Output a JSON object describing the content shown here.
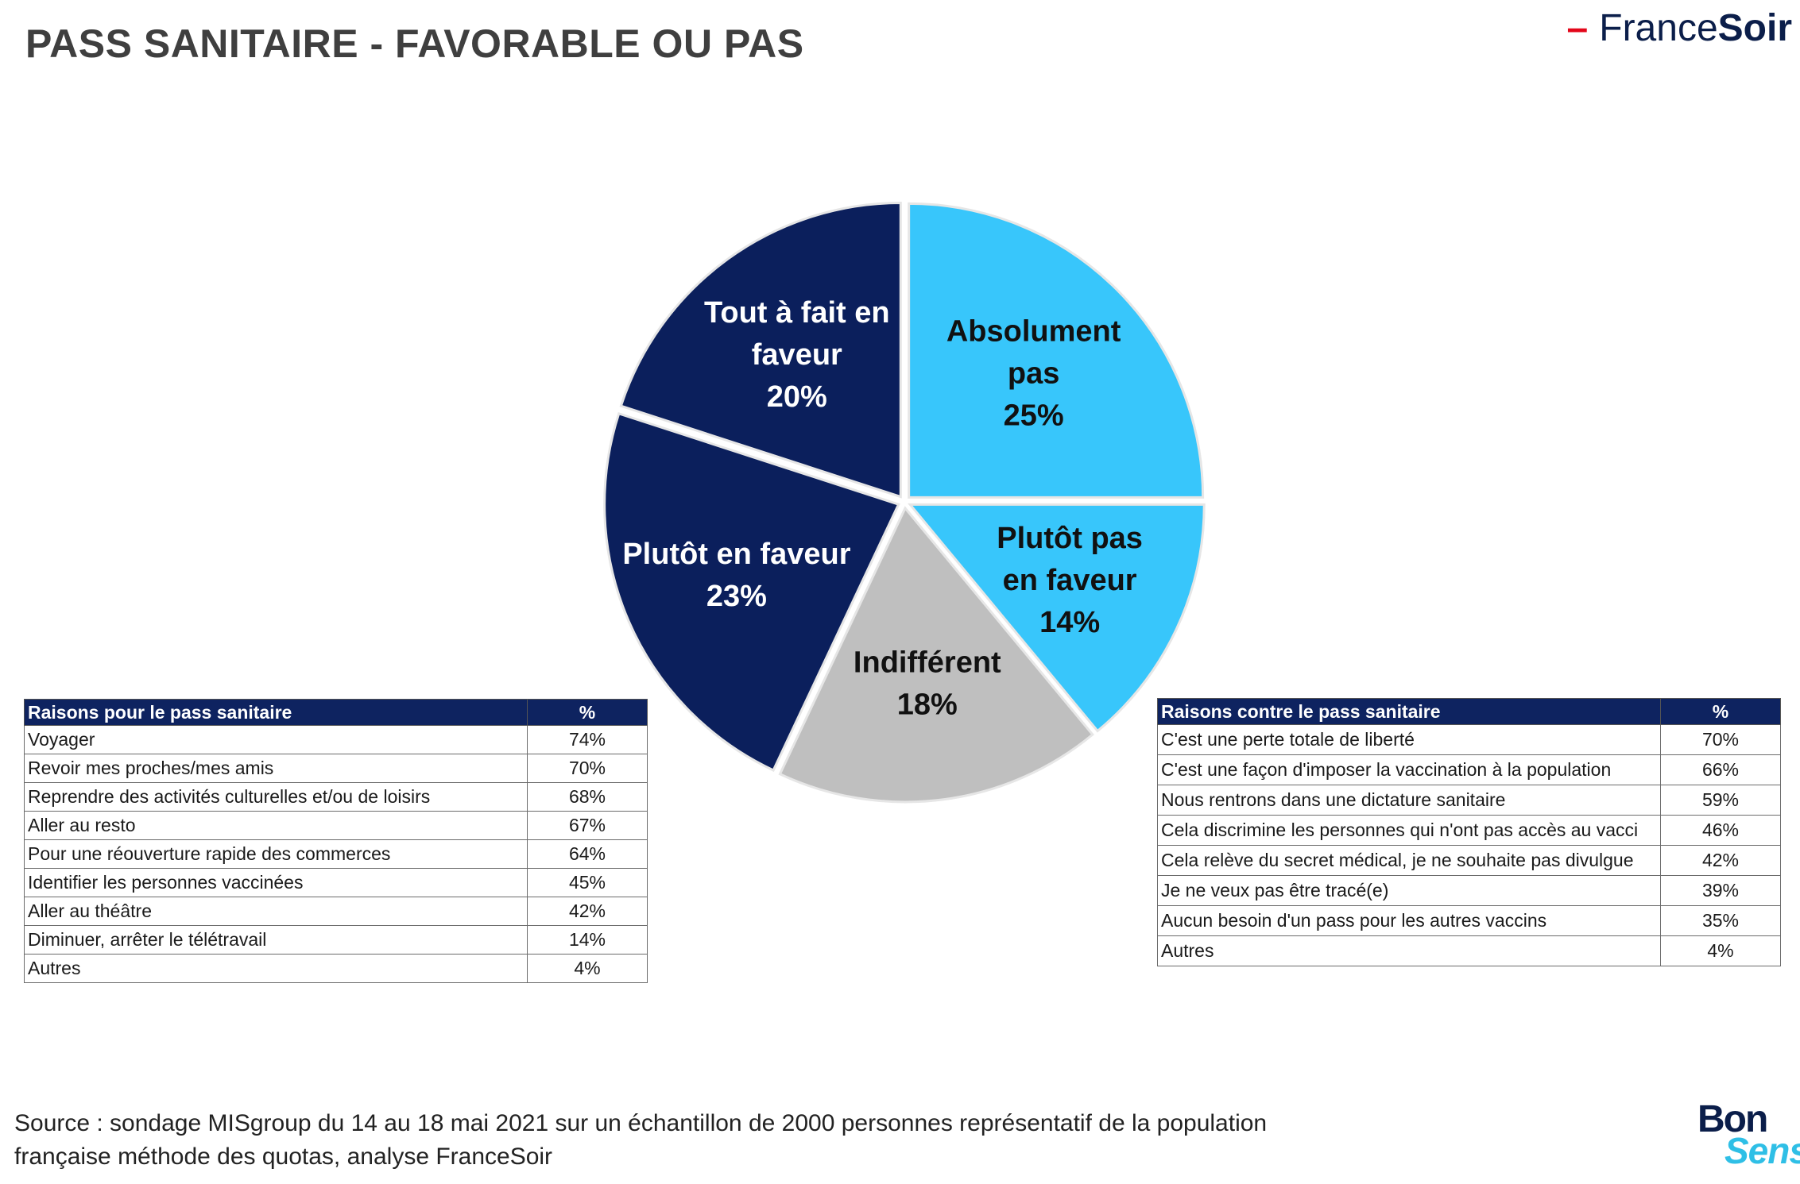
{
  "header": {
    "title": "PASS SANITAIRE - FAVORABLE OU PAS",
    "logo_part1": "France",
    "logo_part2": "Soir"
  },
  "chart_data": {
    "type": "pie",
    "title": "PASS SANITAIRE - FAVORABLE OU PAS",
    "slices": [
      {
        "label": "Absolument pas",
        "lines": [
          "Absolument",
          "pas",
          "25%"
        ],
        "value": 25,
        "color": "#38c6fb",
        "text_color": "#111111"
      },
      {
        "label": "Plutôt pas en faveur",
        "lines": [
          "Plutôt pas",
          "en faveur",
          "14%"
        ],
        "value": 14,
        "color": "#38c6fb",
        "text_color": "#111111"
      },
      {
        "label": "Indifférent",
        "lines": [
          "Indifférent",
          "18%"
        ],
        "value": 18,
        "color": "#bfbfbf",
        "text_color": "#111111"
      },
      {
        "label": "Plutôt en faveur",
        "lines": [
          "Plutôt en faveur",
          "23%"
        ],
        "value": 23,
        "color": "#0b1f5c",
        "text_color": "#ffffff"
      },
      {
        "label": "Tout à fait en faveur",
        "lines": [
          "Tout à fait en",
          "faveur",
          "20%"
        ],
        "value": 20,
        "color": "#0b1f5c",
        "text_color": "#ffffff"
      }
    ]
  },
  "table_pour": {
    "header": "Raisons pour le pass sanitaire",
    "pct_header": "%",
    "rows": [
      {
        "label": "Voyager",
        "pct": "74%"
      },
      {
        "label": "Revoir mes proches/mes amis",
        "pct": "70%"
      },
      {
        "label": "Reprendre des activités culturelles et/ou de loisirs",
        "pct": "68%"
      },
      {
        "label": "Aller au resto",
        "pct": "67%"
      },
      {
        "label": "Pour une réouverture rapide des commerces",
        "pct": "64%"
      },
      {
        "label": "Identifier les personnes vaccinées",
        "pct": "45%"
      },
      {
        "label": "Aller au théâtre",
        "pct": "42%"
      },
      {
        "label": "Diminuer, arrêter le télétravail",
        "pct": "14%"
      },
      {
        "label": "Autres",
        "pct": "4%"
      }
    ]
  },
  "table_contre": {
    "header": "Raisons contre le pass sanitaire",
    "pct_header": "%",
    "rows": [
      {
        "label": "C'est une perte totale de liberté",
        "pct": "70%"
      },
      {
        "label": "C'est une façon d'imposer la vaccination à la population",
        "pct": "66%"
      },
      {
        "label": "Nous rentrons dans une dictature sanitaire",
        "pct": "59%"
      },
      {
        "label": "Cela discrimine les personnes qui n'ont pas accès au vacci",
        "pct": "46%"
      },
      {
        "label": "Cela relève du secret médical, je ne souhaite pas divulgue",
        "pct": "42%"
      },
      {
        "label": "Je ne veux pas être tracé(e)",
        "pct": "39%"
      },
      {
        "label": "Aucun besoin d'un pass pour les autres vaccins",
        "pct": "35%"
      },
      {
        "label": "Autres",
        "pct": "4%"
      }
    ]
  },
  "footer": {
    "source_line1": "Source : sondage MISgroup du 14 au 18 mai 2021 sur un échantillon de 2000 personnes représentatif de la population",
    "source_line2": "française méthode des quotas, analyse FranceSoir",
    "logo_bon": "Bon",
    "logo_sens": "Sens"
  }
}
